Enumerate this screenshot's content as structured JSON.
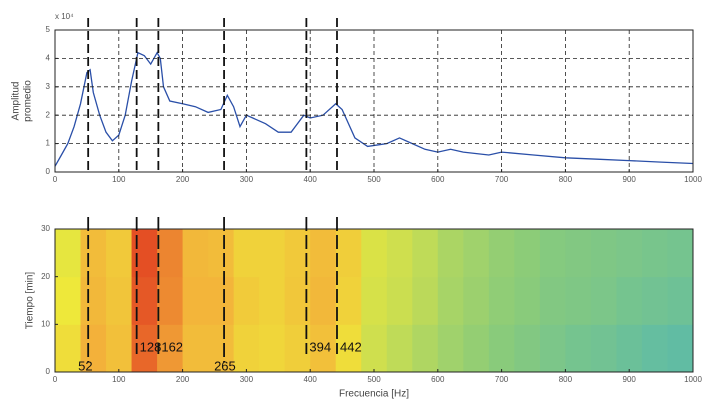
{
  "chart_data": [
    {
      "type": "line",
      "ylabel": [
        "Amplitud",
        "promedio"
      ],
      "y_multiplier": "x 10⁴",
      "x": [
        0,
        10,
        20,
        30,
        40,
        50,
        55,
        60,
        70,
        80,
        90,
        100,
        110,
        120,
        130,
        140,
        150,
        160,
        165,
        170,
        180,
        200,
        220,
        240,
        260,
        270,
        280,
        290,
        300,
        310,
        330,
        350,
        370,
        390,
        400,
        420,
        440,
        450,
        470,
        490,
        520,
        540,
        560,
        580,
        600,
        620,
        640,
        680,
        700,
        750,
        800,
        850,
        900,
        950,
        1000
      ],
      "series": [
        {
          "color": "#2a4fa8",
          "values": [
            0.2,
            0.6,
            1.0,
            1.6,
            2.4,
            3.5,
            3.6,
            2.8,
            2.0,
            1.4,
            1.1,
            1.3,
            2.0,
            3.2,
            4.2,
            4.1,
            3.8,
            4.2,
            4.0,
            3.0,
            2.5,
            2.4,
            2.3,
            2.1,
            2.2,
            2.7,
            2.3,
            1.6,
            2.0,
            1.9,
            1.7,
            1.4,
            1.4,
            2.0,
            1.9,
            2.0,
            2.4,
            2.2,
            1.2,
            0.9,
            1.0,
            1.2,
            1.0,
            0.8,
            0.7,
            0.8,
            0.7,
            0.6,
            0.7,
            0.6,
            0.5,
            0.45,
            0.4,
            0.35,
            0.3
          ]
        }
      ],
      "xlim": [
        0,
        1000
      ],
      "xticks": [
        0,
        100,
        200,
        300,
        400,
        500,
        600,
        700,
        800,
        900,
        1000
      ],
      "ylim": [
        0,
        5
      ],
      "yticks": [
        0,
        1,
        2,
        3,
        4,
        5
      ],
      "grid": true,
      "markers": [
        52,
        128,
        162,
        265,
        394,
        442
      ]
    },
    {
      "type": "heatmap",
      "xlabel": "Frecuencia [Hz]",
      "ylabel": "Tiempo [min]",
      "xbins": [
        0,
        40,
        80,
        120,
        160,
        200,
        240,
        280,
        320,
        360,
        400,
        440,
        480,
        520,
        560,
        600,
        640,
        680,
        720,
        760,
        800,
        840,
        880,
        920,
        960,
        1000
      ],
      "ybins": [
        0,
        10,
        20,
        30
      ],
      "z": [
        [
          0.55,
          0.75,
          0.68,
          0.9,
          0.8,
          0.7,
          0.7,
          0.6,
          0.58,
          0.62,
          0.68,
          0.55,
          0.42,
          0.38,
          0.34,
          0.3,
          0.27,
          0.24,
          0.22,
          0.2,
          0.18,
          0.17,
          0.15,
          0.13,
          0.12
        ],
        [
          0.5,
          0.72,
          0.66,
          0.93,
          0.83,
          0.73,
          0.73,
          0.63,
          0.6,
          0.65,
          0.72,
          0.6,
          0.44,
          0.41,
          0.37,
          0.32,
          0.29,
          0.26,
          0.24,
          0.22,
          0.21,
          0.2,
          0.18,
          0.17,
          0.16
        ],
        [
          0.48,
          0.7,
          0.64,
          0.95,
          0.84,
          0.72,
          0.7,
          0.6,
          0.6,
          0.64,
          0.7,
          0.62,
          0.45,
          0.42,
          0.38,
          0.33,
          0.3,
          0.27,
          0.25,
          0.23,
          0.22,
          0.21,
          0.2,
          0.19,
          0.18
        ]
      ],
      "zlim": [
        0,
        1
      ],
      "colormap": [
        "#3aaecb",
        "#8ccc78",
        "#eee83a",
        "#f3b13a",
        "#e0361e"
      ],
      "xlim": [
        0,
        1000
      ],
      "xticks": [
        0,
        100,
        200,
        300,
        400,
        500,
        600,
        700,
        800,
        900,
        1000
      ],
      "ylim": [
        0,
        30
      ],
      "yticks": [
        0,
        10,
        20,
        30
      ],
      "markers": [
        52,
        128,
        162,
        265,
        394,
        442
      ]
    }
  ]
}
